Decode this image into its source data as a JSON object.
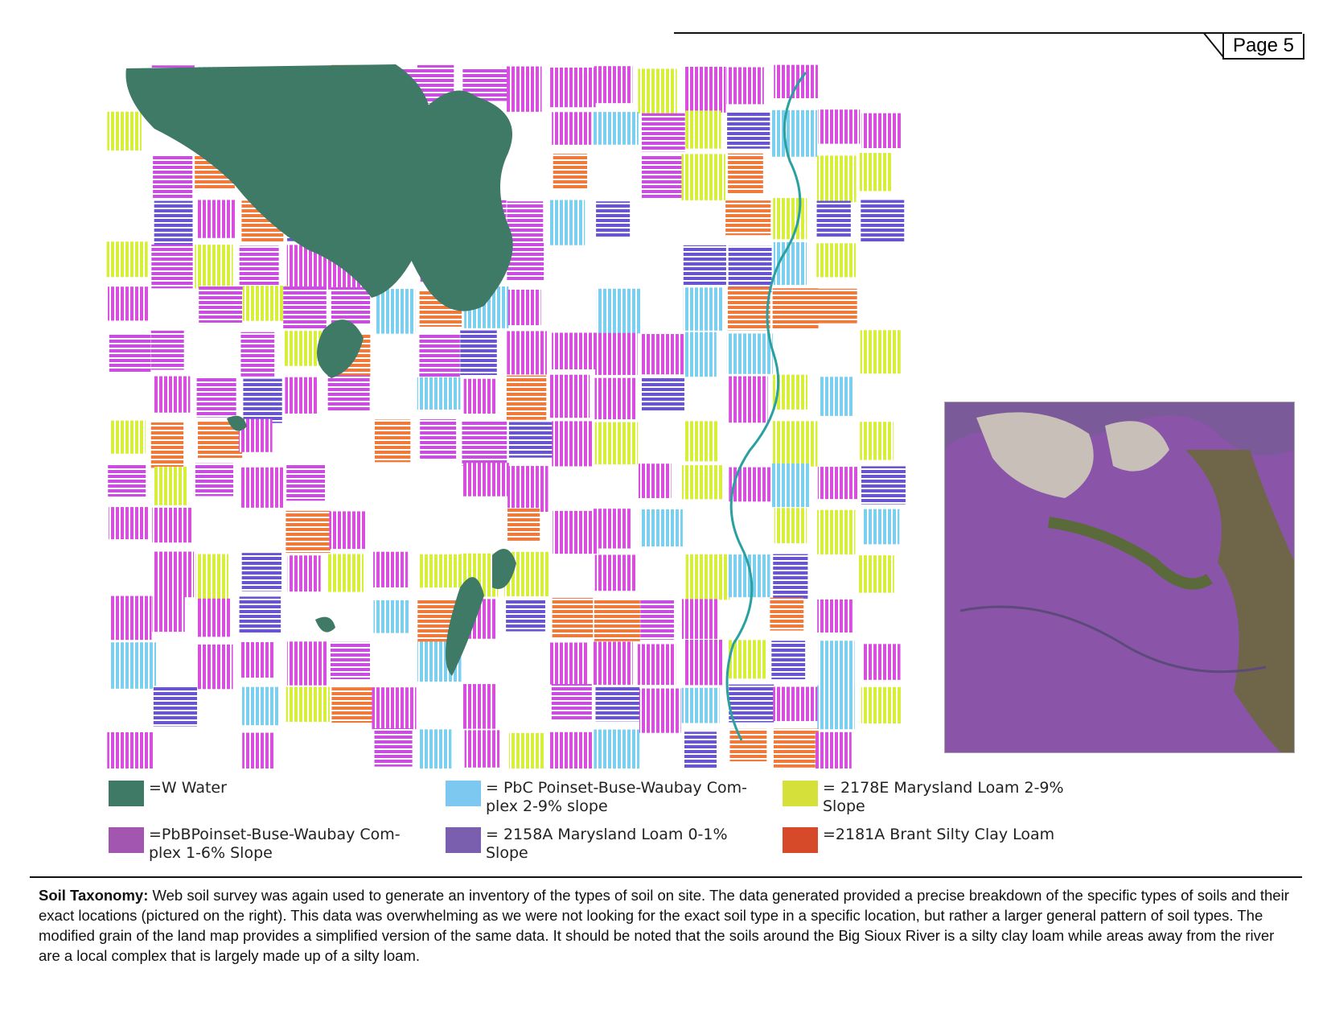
{
  "header": {
    "page_label": "Page 5"
  },
  "legend": [
    {
      "color": "#3e7a66",
      "lines": [
        "=W Water"
      ]
    },
    {
      "color": "#7cc8f0",
      "lines": [
        "= PbC Poinset-Buse-Waubay Com-",
        "plex 2-9% slope"
      ]
    },
    {
      "color": "#d6e03a",
      "lines": [
        "= 2178E Marysland Loam 2-9%",
        "Slope"
      ]
    },
    {
      "color": "#a356b0",
      "lines": [
        "=PbBPoinset-Buse-Waubay Com-",
        "plex 1-6% Slope"
      ]
    },
    {
      "color": "#7a5fae",
      "lines": [
        "= 2158A Marysland Loam 0-1%",
        "Slope"
      ]
    },
    {
      "color": "#d64a2a",
      "lines": [
        "=2181A Brant Silty Clay Loam"
      ]
    }
  ],
  "body": {
    "lead": "Soil Taxonomy:",
    "text": " Web soil survey was again used to generate an inventory of the types of soil on site. The data generated provided a precise breakdown of the specific types of soils and their exact locations (pictured on the right). This data was overwhelming as we were not looking for the exact soil type in a specific location, but rather a larger general pattern of soil types. The modified grain of the land map provides a simplified version of the same data. It should be noted that the soils around the Big Sioux River is a silty clay loam while areas away from the river are a local complex that is largely made up of a silty loam."
  }
}
